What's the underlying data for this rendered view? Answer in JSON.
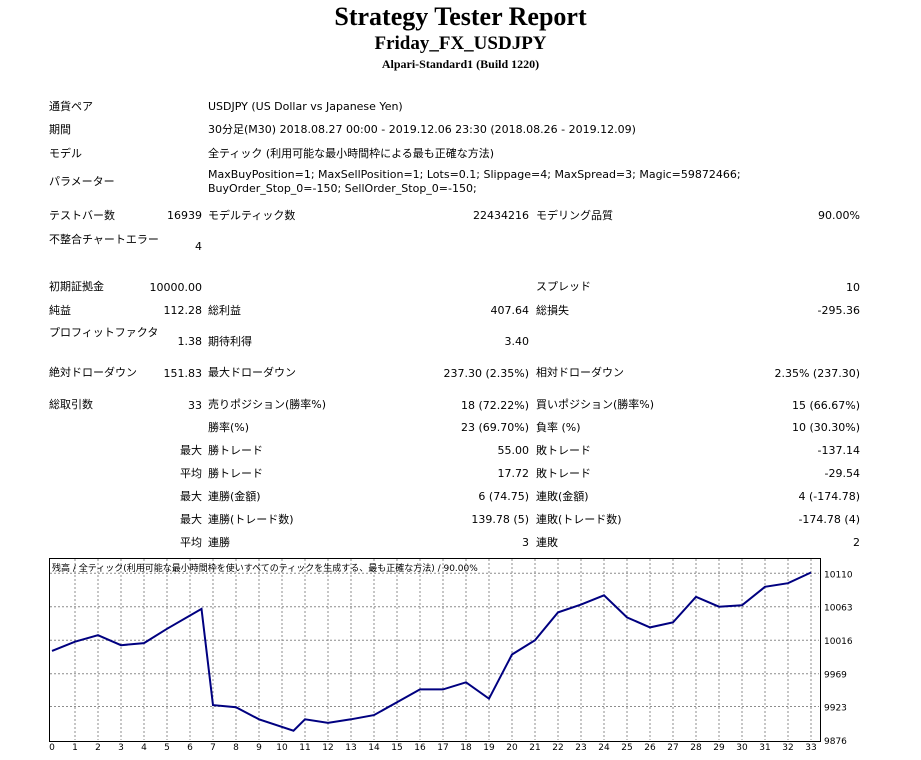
{
  "header": {
    "title": "Strategy Tester Report",
    "ea_name": "Friday_FX_USDJPY",
    "server": "Alpari-Standard1 (Build 1220)"
  },
  "info": {
    "symbol_label": "通貨ペア",
    "symbol_value": "USDJPY (US Dollar vs Japanese Yen)",
    "period_label": "期間",
    "period_value": "30分足(M30) 2018.08.27 00:00 - 2019.12.06 23:30 (2018.08.26 - 2019.12.09)",
    "model_label": "モデル",
    "model_value": "全ティック (利用可能な最小時間枠による最も正確な方法)",
    "params_label": "パラメーター",
    "params_value": "MaxBuyPosition=1; MaxSellPosition=1; Lots=0.1; Slippage=4; MaxSpread=3; Magic=59872466; BuyOrder_Stop_0=-150; SellOrder_Stop_0=-150;"
  },
  "stats": {
    "bars_label": "テストバー数",
    "bars_value": "16939",
    "ticks_label": "モデルティック数",
    "ticks_value": "22434216",
    "quality_label": "モデリング品質",
    "quality_value": "90.00%",
    "mismatch_label": "不整合チャートエラー",
    "mismatch_value": "4",
    "deposit_label": "初期証拠金",
    "deposit_value": "10000.00",
    "spread_label": "スプレッド",
    "spread_value": "10",
    "netprofit_label": "純益",
    "netprofit_value": "112.28",
    "grossprofit_label": "総利益",
    "grossprofit_value": "407.64",
    "grossloss_label": "総損失",
    "grossloss_value": "-295.36",
    "pf_label": "プロフィットファクタ",
    "pf_value": "1.38",
    "payoff_label": "期待利得",
    "payoff_value": "3.40",
    "absdd_label": "絶対ドローダウン",
    "absdd_value": "151.83",
    "maxdd_label": "最大ドローダウン",
    "maxdd_value": "237.30 (2.35%)",
    "reldd_label": "相対ドローダウン",
    "reldd_value": "2.35% (237.30)",
    "trades_label": "総取引数",
    "trades_value": "33",
    "short_label": "売りポジション(勝率%)",
    "short_value": "18 (72.22%)",
    "long_label": "買いポジション(勝率%)",
    "long_value": "15 (66.67%)",
    "winpct_label": "勝率(%)",
    "winpct_value": "23 (69.70%)",
    "losspct_label": "負率 (%)",
    "losspct_value": "10 (30.30%)",
    "max_label": "最大",
    "avg_label": "平均",
    "win_trade_label": "勝トレード",
    "loss_trade_label": "敗トレード",
    "largest_win_value": "55.00",
    "largest_loss_value": "-137.14",
    "average_win_value": "17.72",
    "average_loss_value": "-29.54",
    "consec_wins_amt_label": "連勝(金額)",
    "consec_wins_amt_value": "6 (74.75)",
    "consec_losses_amt_label": "連敗(金額)",
    "consec_losses_amt_value": "4 (-174.78)",
    "consec_wins_cnt_label": "連勝(トレード数)",
    "consec_wins_cnt_value": "139.78 (5)",
    "consec_losses_cnt_label": "連敗(トレード数)",
    "consec_losses_cnt_value": "-174.78 (4)",
    "avg_consec_wins_label": "連勝",
    "avg_consec_wins_value": "3",
    "avg_consec_losses_label": "連敗",
    "avg_consec_losses_value": "2"
  },
  "chart_data": {
    "type": "line",
    "title": "残高 / 全ティック(利用可能な最小時間枠を使いすべてのティックを生成する、最も正確な方法) / 90.00%",
    "x": [
      0,
      1,
      2,
      3,
      4,
      5,
      6.5,
      7,
      8,
      9,
      10.5,
      11,
      12,
      13,
      14,
      15,
      16,
      17,
      18,
      19,
      20,
      21,
      22,
      23,
      24,
      25,
      26,
      27,
      28,
      29,
      30,
      31,
      32,
      33
    ],
    "y": [
      10001,
      10014,
      10023,
      10009,
      10012,
      10032,
      10060,
      9925,
      9922,
      9905,
      9889,
      9905,
      9900,
      9905,
      9911,
      9929,
      9947,
      9947,
      9957,
      9934,
      9996,
      10016,
      10055,
      10066,
      10079,
      10048,
      10034,
      10041,
      10077,
      10063,
      10065,
      10091,
      10096,
      10111
    ],
    "xticks": [
      0,
      1,
      2,
      3,
      4,
      5,
      6,
      7,
      8,
      9,
      10,
      11,
      12,
      13,
      14,
      15,
      16,
      17,
      18,
      19,
      20,
      21,
      22,
      23,
      24,
      25,
      26,
      27,
      28,
      29,
      30,
      31,
      32,
      33
    ],
    "yticks": [
      "10110",
      "10063",
      "10016",
      "9969",
      "9923",
      "9876"
    ],
    "ylim": [
      9876,
      10130
    ],
    "xlim": [
      0,
      34
    ],
    "grid": true,
    "line_color": "#000080"
  }
}
